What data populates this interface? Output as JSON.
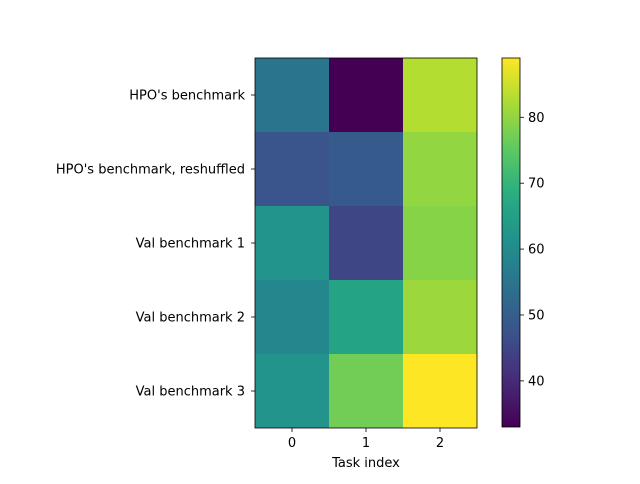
{
  "chart_data": {
    "type": "heatmap",
    "title": "",
    "xlabel": "Task index",
    "ylabel": "",
    "x_categories": [
      "0",
      "1",
      "2"
    ],
    "y_categories": [
      "HPO's benchmark",
      "HPO's benchmark, reshuffled",
      "Val benchmark 1",
      "Val benchmark 2",
      "Val benchmark 3"
    ],
    "values": [
      [
        55,
        33,
        83
      ],
      [
        48,
        49,
        80
      ],
      [
        62,
        45,
        79
      ],
      [
        59,
        66,
        81
      ],
      [
        62,
        77,
        89
      ]
    ],
    "colormap": "viridis",
    "color_range": [
      33,
      89
    ],
    "colorbar_ticks": [
      40,
      50,
      60,
      70,
      80
    ],
    "grid": false,
    "colorbar_position": "right"
  }
}
